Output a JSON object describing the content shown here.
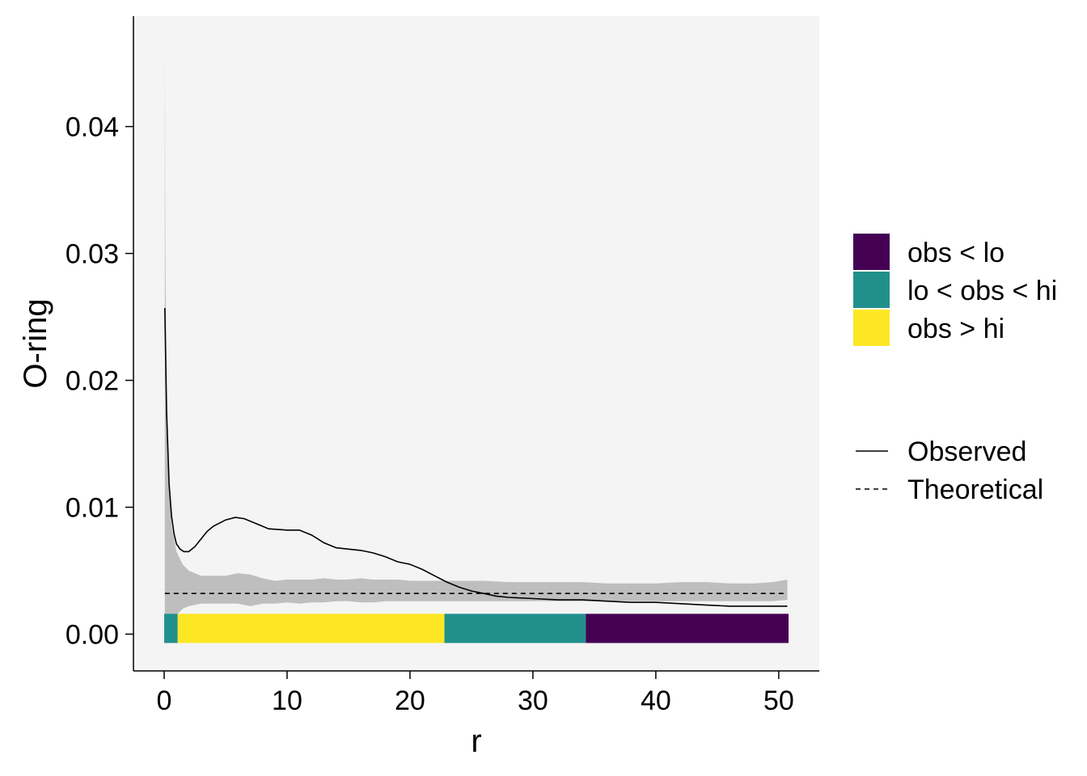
{
  "chart_data": {
    "type": "line",
    "xlabel": "r",
    "ylabel": "O-ring",
    "xlim": [
      -2.5,
      53.3
    ],
    "ylim": [
      -0.0029,
      0.0487
    ],
    "x_ticks": [
      0,
      10,
      20,
      30,
      40,
      50
    ],
    "x_tick_labels": [
      "0",
      "10",
      "20",
      "30",
      "40",
      "50"
    ],
    "y_ticks": [
      0.0,
      0.01,
      0.02,
      0.03,
      0.04
    ],
    "y_tick_labels": [
      "0.00",
      "0.01",
      "0.02",
      "0.03",
      "0.04"
    ],
    "panel_background": "#f4f4f4",
    "grid": false,
    "legend_position": "right",
    "series": [
      {
        "name": "Observed",
        "linetype": "solid",
        "color": "#000000",
        "x": [
          0.05,
          0.2,
          0.4,
          0.6,
          0.8,
          1.0,
          1.3,
          1.6,
          2.0,
          2.5,
          3.0,
          3.5,
          4.0,
          5.0,
          5.8,
          6.5,
          7.5,
          8.5,
          10.0,
          11.0,
          12.0,
          13.0,
          14.0,
          15.0,
          16.0,
          17.0,
          18.0,
          19.0,
          20.0,
          21.0,
          22.0,
          23.0,
          24.0,
          25.0,
          26.0,
          27.0,
          28.0,
          30.0,
          32.0,
          34.0,
          36.0,
          38.0,
          40.0,
          42.0,
          44.0,
          46.0,
          48.0,
          50.0,
          50.7
        ],
        "y": [
          0.0257,
          0.0175,
          0.0118,
          0.0093,
          0.0079,
          0.0071,
          0.0067,
          0.0065,
          0.0065,
          0.0069,
          0.0075,
          0.0081,
          0.0085,
          0.009,
          0.0092,
          0.0091,
          0.0087,
          0.0083,
          0.0082,
          0.0082,
          0.0078,
          0.0072,
          0.0068,
          0.0067,
          0.0066,
          0.0064,
          0.0061,
          0.0057,
          0.0055,
          0.0051,
          0.0046,
          0.0041,
          0.0037,
          0.0034,
          0.0032,
          0.003,
          0.0029,
          0.0028,
          0.0027,
          0.0027,
          0.0026,
          0.0025,
          0.0025,
          0.0024,
          0.0023,
          0.0022,
          0.0022,
          0.0022,
          0.0022
        ]
      },
      {
        "name": "Theoretical",
        "linetype": "dashed",
        "color": "#000000",
        "x": [
          0.05,
          50.7
        ],
        "y": [
          0.0032,
          0.0032
        ]
      }
    ],
    "envelope": {
      "color": "#bebebe",
      "x": [
        0.05,
        0.1,
        0.2,
        0.4,
        0.6,
        1.0,
        1.5,
        2.0,
        3.0,
        4.0,
        5.0,
        6.0,
        7.0,
        8.0,
        9.0,
        10.0,
        11.0,
        12.0,
        13.0,
        14.0,
        15.0,
        16.0,
        17.0,
        18.0,
        19.0,
        20.0,
        22.0,
        24.0,
        26.0,
        28.0,
        30.0,
        32.0,
        34.0,
        36.0,
        38.0,
        40.0,
        42.0,
        44.0,
        46.0,
        48.0,
        49.5,
        50.7
      ],
      "lo": [
        0.0,
        0.0,
        0.0,
        0.0,
        0.0008,
        0.0015,
        0.002,
        0.0022,
        0.0024,
        0.0024,
        0.0024,
        0.0024,
        0.0022,
        0.0024,
        0.0024,
        0.0025,
        0.0024,
        0.0025,
        0.0025,
        0.0026,
        0.0026,
        0.0025,
        0.0025,
        0.0026,
        0.0026,
        0.0026,
        0.0026,
        0.0026,
        0.0026,
        0.0026,
        0.0026,
        0.0026,
        0.0026,
        0.0026,
        0.0026,
        0.0026,
        0.0026,
        0.0026,
        0.0026,
        0.0026,
        0.0026,
        0.0027
      ],
      "hi": [
        0.0462,
        0.03,
        0.019,
        0.012,
        0.0085,
        0.0065,
        0.0055,
        0.005,
        0.0046,
        0.0046,
        0.0046,
        0.0048,
        0.0047,
        0.0044,
        0.0042,
        0.0043,
        0.0043,
        0.0043,
        0.0044,
        0.0043,
        0.0043,
        0.0044,
        0.0043,
        0.0043,
        0.0043,
        0.0042,
        0.0042,
        0.0042,
        0.0042,
        0.0041,
        0.0041,
        0.0041,
        0.0041,
        0.004,
        0.004,
        0.004,
        0.0041,
        0.0041,
        0.004,
        0.004,
        0.0041,
        0.0043
      ]
    },
    "status_bar": {
      "y_range": [
        -0.0007,
        0.0016
      ],
      "segments": [
        {
          "from": 0.0,
          "to": 1.1,
          "category": "lo < obs < hi"
        },
        {
          "from": 1.1,
          "to": 22.8,
          "category": "obs > hi"
        },
        {
          "from": 22.8,
          "to": 34.3,
          "category": "lo < obs < hi"
        },
        {
          "from": 34.3,
          "to": 50.8,
          "category": "obs < lo"
        }
      ]
    },
    "fill_legend": [
      {
        "label": "obs < lo",
        "color": "#440154"
      },
      {
        "label": "lo < obs < hi",
        "color": "#21908c"
      },
      {
        "label": "obs > hi",
        "color": "#fde725"
      }
    ],
    "line_legend": [
      {
        "label": "Observed",
        "linetype": "solid"
      },
      {
        "label": "Theoretical",
        "linetype": "dashed"
      }
    ]
  }
}
